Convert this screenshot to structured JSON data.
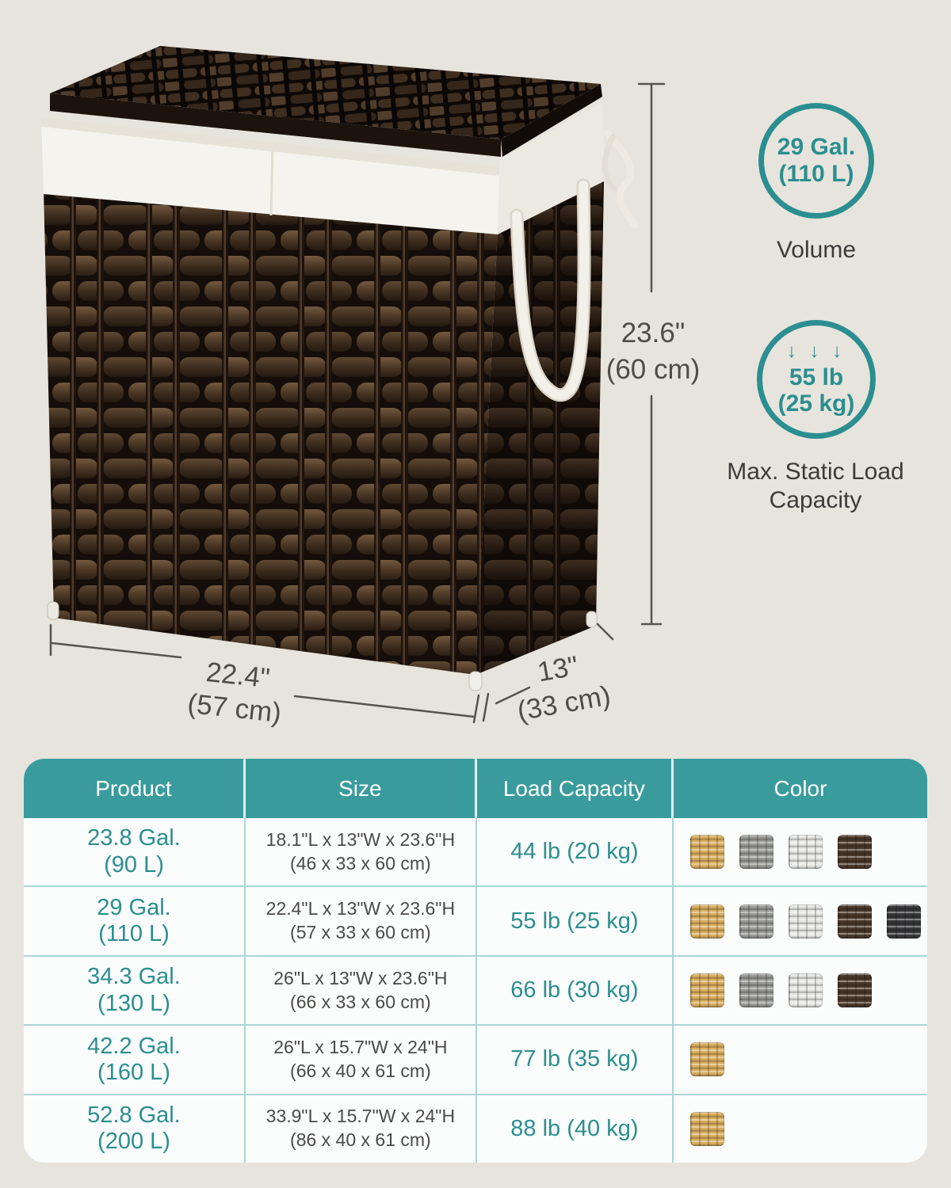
{
  "colors": {
    "background": "#e7e4dd",
    "accent_teal": "#2b8e90",
    "table_header_teal": "#3a9b9d",
    "table_background": "#fbfcfc",
    "dimension_text": "#504d49",
    "swatches": {
      "natural": "#d9ae5f",
      "gray": "#9a9a98",
      "white": "#e6e6e4",
      "brown": "#4b3a2b",
      "black": "#39393b"
    }
  },
  "hero": {
    "height_label": {
      "imperial": "23.6\"",
      "metric": "(60 cm)"
    },
    "width_label": {
      "imperial": "22.4\"",
      "metric": "(57 cm)"
    },
    "depth_label": {
      "imperial": "13\"",
      "metric": "(33 cm)"
    },
    "volume_badge": {
      "value": "29 Gal.",
      "metric": "(110 L)",
      "caption": "Volume"
    },
    "load_badge": {
      "arrows": "↓ ↓ ↓",
      "value": "55 lb",
      "metric": "(25 kg)",
      "caption_line1": "Max. Static Load",
      "caption_line2": "Capacity"
    }
  },
  "table": {
    "header": {
      "product": "Product",
      "size": "Size",
      "load": "Load Capacity",
      "color": "Color"
    },
    "rows": [
      {
        "product_gal": "23.8 Gal.",
        "product_l": "(90 L)",
        "size_in": "18.1\"L x 13\"W x 23.6\"H",
        "size_cm": "(46 x 33 x 60 cm)",
        "load": "44 lb (20 kg)",
        "colors": [
          "natural",
          "gray",
          "white",
          "brown"
        ]
      },
      {
        "product_gal": "29 Gal.",
        "product_l": "(110 L)",
        "size_in": "22.4\"L x 13\"W x 23.6\"H",
        "size_cm": "(57 x 33 x 60 cm)",
        "load": "55 lb (25 kg)",
        "colors": [
          "natural",
          "gray",
          "white",
          "brown",
          "black"
        ]
      },
      {
        "product_gal": "34.3 Gal.",
        "product_l": "(130 L)",
        "size_in": "26\"L x 13\"W x 23.6\"H",
        "size_cm": "(66 x 33 x 60 cm)",
        "load": "66 lb (30 kg)",
        "colors": [
          "natural",
          "gray",
          "white",
          "brown"
        ]
      },
      {
        "product_gal": "42.2 Gal.",
        "product_l": "(160 L)",
        "size_in": "26\"L x 15.7\"W x 24\"H",
        "size_cm": "(66 x 40 x 61 cm)",
        "load": "77 lb (35 kg)",
        "colors": [
          "natural"
        ]
      },
      {
        "product_gal": "52.8 Gal.",
        "product_l": "(200 L)",
        "size_in": "33.9\"L x 15.7\"W x 24\"H",
        "size_cm": "(86 x 40 x 61 cm)",
        "load": "88 lb (40 kg)",
        "colors": [
          "natural"
        ]
      }
    ]
  }
}
